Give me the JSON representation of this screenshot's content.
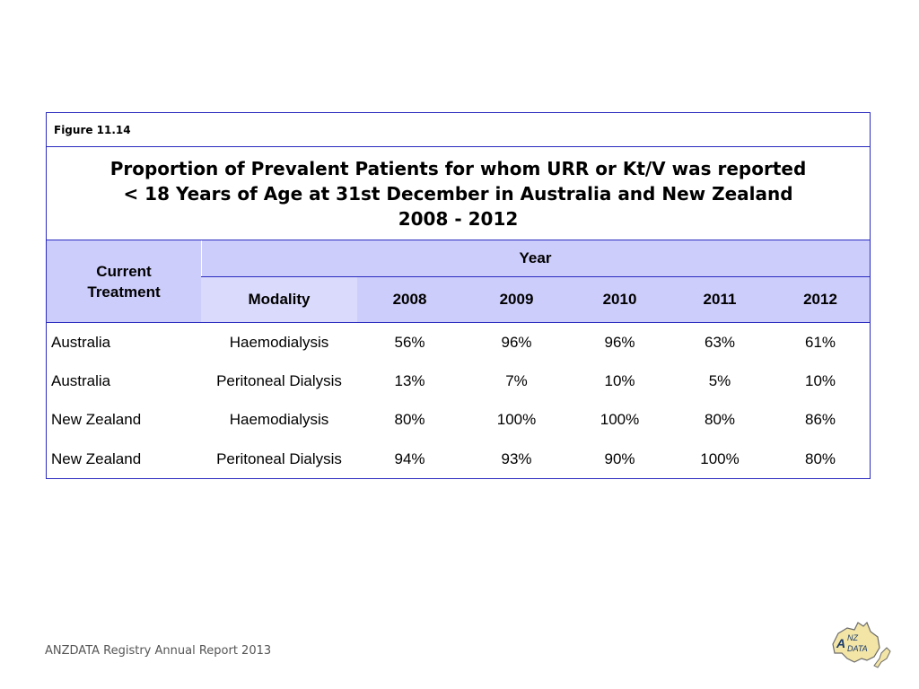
{
  "figure_label": "Figure 11.14",
  "title_lines": [
    "Proportion of Prevalent Patients for whom URR or Kt/V was reported",
    "< 18 Years of Age at 31st December in Australia and New Zealand",
    "2008 - 2012"
  ],
  "header": {
    "treatment": "Current Treatment",
    "year": "Year",
    "modality": "Modality",
    "years": [
      "2008",
      "2009",
      "2010",
      "2011",
      "2012"
    ]
  },
  "rows": [
    {
      "country": "Australia",
      "modality": "Haemodialysis",
      "values": [
        "56%",
        "96%",
        "96%",
        "63%",
        "61%"
      ]
    },
    {
      "country": "Australia",
      "modality": "Peritoneal Dialysis",
      "values": [
        "13%",
        "7%",
        "10%",
        "5%",
        "10%"
      ]
    },
    {
      "country": "New Zealand",
      "modality": "Haemodialysis",
      "values": [
        "80%",
        "100%",
        "100%",
        "80%",
        "86%"
      ]
    },
    {
      "country": "New Zealand",
      "modality": "Peritoneal Dialysis",
      "values": [
        "94%",
        "93%",
        "90%",
        "100%",
        "80%"
      ]
    }
  ],
  "footer": "ANZDATA Registry Annual Report 2013",
  "logo_text": "ANZDATA",
  "colors": {
    "border": "#2b2bbf",
    "header_bg": "#cdcdfc"
  }
}
